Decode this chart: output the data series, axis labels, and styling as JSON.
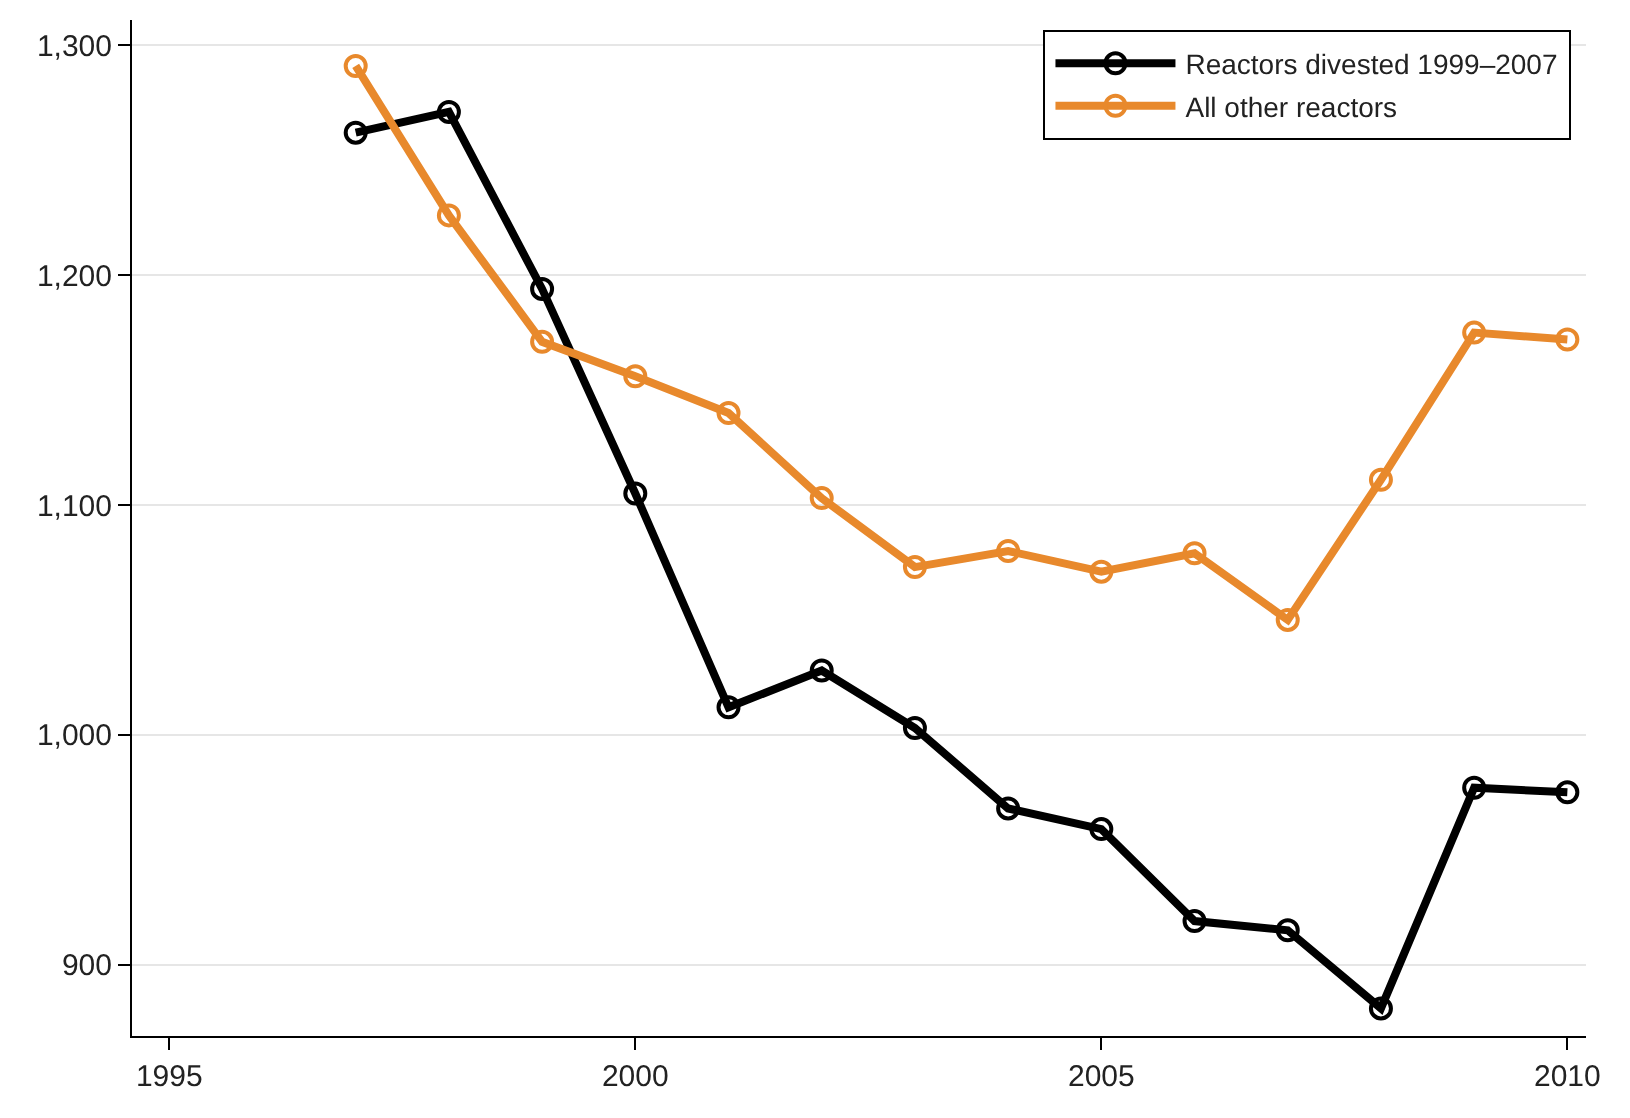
{
  "chart_data": {
    "type": "line",
    "x": [
      1997,
      1998,
      1999,
      2000,
      2001,
      2002,
      2003,
      2004,
      2005,
      2006,
      2007,
      2008,
      2009,
      2010
    ],
    "series": [
      {
        "name": "Reactors divested 1999–2007",
        "color": "#000000",
        "values": [
          1262,
          1271,
          1194,
          1105,
          1012,
          1028,
          1003,
          968,
          959,
          919,
          915,
          881,
          977,
          975
        ]
      },
      {
        "name": "All other reactors",
        "color": "#e8892c",
        "values": [
          1291,
          1226,
          1171,
          1156,
          1140,
          1103,
          1073,
          1080,
          1071,
          1079,
          1050,
          1111,
          1175,
          1172
        ]
      }
    ],
    "xlim": [
      1994.6,
      2010.2
    ],
    "xticks": [
      1995,
      2000,
      2005,
      2010
    ],
    "ylim": [
      869,
      1311
    ],
    "yticks": [
      {
        "value": 900,
        "label": "900"
      },
      {
        "value": 1000,
        "label": "1,000"
      },
      {
        "value": 1100,
        "label": "1,100"
      },
      {
        "value": 1200,
        "label": "1,200"
      },
      {
        "value": 1300,
        "label": "1,300"
      }
    ],
    "grid": "y",
    "legend": "top right",
    "marker": "circle",
    "line_style": "solid"
  }
}
